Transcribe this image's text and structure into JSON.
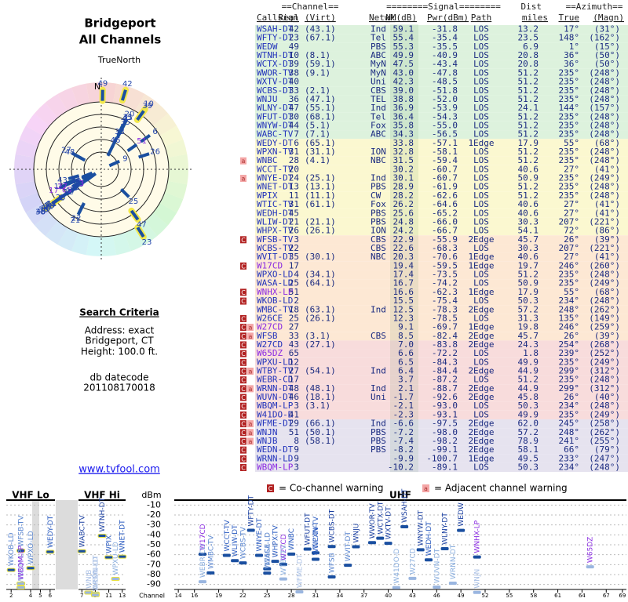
{
  "header": {
    "title": "Bridgeport",
    "subtitle": "All Channels"
  },
  "polar": {
    "north_label": "TrueNorth",
    "n": "N"
  },
  "search": {
    "heading": "Search Criteria",
    "lines": [
      "Address: exact",
      "Bridgeport, CT",
      "Height: 100.0 ft."
    ],
    "datecode_label": "db datecode",
    "datecode": "201108170018"
  },
  "link": "www.tvfool.com",
  "table": {
    "group_headers": [
      "==Channel==",
      "========Signal========",
      "Dist",
      "==Azimuth=="
    ],
    "headers": [
      "Callsign",
      "Real",
      "(Virt)",
      "Netwk",
      "NM(dB)",
      "Pwr(dBm)",
      "Path",
      "miles",
      "True",
      "(Magn)"
    ],
    "rows": [
      {
        "callsign": "WSAH-DT",
        "real": 42,
        "virt": "(43.1)",
        "netwk": "Ind",
        "nm": 59.1,
        "pwr": -31.8,
        "path": "LOS",
        "dist": 13.2,
        "az_true": "17°",
        "az_magn": "(31°)"
      },
      {
        "callsign": "WFTY-DT",
        "real": 23,
        "virt": "(67.1)",
        "netwk": "Tel",
        "nm": 55.4,
        "pwr": -35.4,
        "path": "LOS",
        "dist": 23.5,
        "az_true": "148°",
        "az_magn": "(162°)"
      },
      {
        "callsign": "WEDW",
        "real": 49,
        "netwk": "PBS",
        "nm": 55.3,
        "pwr": -35.5,
        "path": "LOS",
        "dist": 6.9,
        "az_true": "1°",
        "az_magn": "(15°)"
      },
      {
        "callsign": "WTNH-DT",
        "real": 10,
        "virt": "(8.1)",
        "netwk": "ABC",
        "nm": 49.9,
        "pwr": -40.9,
        "path": "LOS",
        "dist": 20.8,
        "az_true": "36°",
        "az_magn": "(50°)"
      },
      {
        "callsign": "WCTX-DT",
        "real": 39,
        "virt": "(59.1)",
        "netwk": "MyN",
        "nm": 47.5,
        "pwr": -43.4,
        "path": "LOS",
        "dist": 20.8,
        "az_true": "36°",
        "az_magn": "(50°)"
      },
      {
        "callsign": "WWOR-TV",
        "real": 38,
        "virt": "(9.1)",
        "netwk": "MyN",
        "nm": "43.0",
        "pwr": -47.8,
        "path": "LOS",
        "dist": 51.2,
        "az_true": "235°",
        "az_magn": "(248°)"
      },
      {
        "callsign": "WXTV-DT",
        "real": 40,
        "netwk": "Uni",
        "nm": 42.3,
        "pwr": -48.5,
        "path": "LOS",
        "dist": 51.2,
        "az_true": "235°",
        "az_magn": "(248°)"
      },
      {
        "callsign": "WCBS-DT",
        "real": 33,
        "virt": "(2.1)",
        "netwk": "CBS",
        "nm": "39.0",
        "pwr": -51.8,
        "path": "LOS",
        "dist": 51.2,
        "az_true": "235°",
        "az_magn": "(248°)"
      },
      {
        "callsign": "WNJU",
        "real": 36,
        "virt": "(47.1)",
        "netwk": "TEL",
        "nm": 38.8,
        "pwr": "-52.0",
        "path": "LOS",
        "dist": 51.2,
        "az_true": "235°",
        "az_magn": "(248°)"
      },
      {
        "callsign": "WLNY-DT",
        "real": 47,
        "virt": "(55.1)",
        "netwk": "Ind",
        "nm": 36.9,
        "pwr": -53.9,
        "path": "LOS",
        "dist": 24.1,
        "az_true": "144°",
        "az_magn": "(157°)"
      },
      {
        "callsign": "WFUT-DT",
        "real": 30,
        "virt": "(68.1)",
        "netwk": "Tel",
        "nm": 36.4,
        "pwr": -54.3,
        "path": "LOS",
        "dist": 51.2,
        "az_true": "235°",
        "az_magn": "(248°)"
      },
      {
        "callsign": "WNYW-DT",
        "real": 44,
        "virt": "(5.1)",
        "netwk": "Fox",
        "nm": 35.8,
        "pwr": "-55.0",
        "path": "LOS",
        "dist": 51.2,
        "az_true": "235°",
        "az_magn": "(248°)"
      },
      {
        "callsign": "WABC-TV",
        "real": 7,
        "virt": "(7.1)",
        "netwk": "ABC",
        "nm": 34.3,
        "pwr": -56.5,
        "path": "LOS",
        "dist": 51.2,
        "az_true": "235°",
        "az_magn": "(248°)"
      },
      {
        "callsign": "WEDY-DT",
        "real": 6,
        "virt": "(65.1)",
        "nm": 33.8,
        "pwr": -57.1,
        "path": "1Edge",
        "dist": 17.9,
        "az_true": "55°",
        "az_magn": "(68°)"
      },
      {
        "callsign": "WPXN-TV",
        "real": 31,
        "virt": "(31.1)",
        "netwk": "ION",
        "nm": 32.8,
        "pwr": -58.1,
        "path": "LOS",
        "dist": 51.2,
        "az_true": "235°",
        "az_magn": "(248°)"
      },
      {
        "callsign": "WNBC",
        "real": 28,
        "virt": "(4.1)",
        "netwk": "NBC",
        "nm": 31.5,
        "pwr": -59.4,
        "path": "LOS",
        "dist": 51.2,
        "az_true": "235°",
        "az_magn": "(248°)",
        "warn": [
          "a"
        ]
      },
      {
        "callsign": "WCCT-TV",
        "real": 20,
        "nm": 30.2,
        "pwr": -60.7,
        "path": "LOS",
        "dist": 40.6,
        "az_true": "27°",
        "az_magn": "(41°)"
      },
      {
        "callsign": "WNYE-DT",
        "real": 24,
        "virt": "(25.1)",
        "netwk": "Ind",
        "nm": 30.1,
        "pwr": -60.7,
        "path": "LOS",
        "dist": 50.9,
        "az_true": "235°",
        "az_magn": "(249°)",
        "warn": [
          "a"
        ]
      },
      {
        "callsign": "WNET-DT",
        "real": 13,
        "virt": "(13.1)",
        "netwk": "PBS",
        "nm": 28.9,
        "pwr": -61.9,
        "path": "LOS",
        "dist": 51.2,
        "az_true": "235°",
        "az_magn": "(248°)"
      },
      {
        "callsign": "WPIX",
        "real": 11,
        "virt": "(11.1)",
        "netwk": "CW",
        "nm": 28.2,
        "pwr": -62.6,
        "path": "LOS",
        "dist": 51.2,
        "az_true": "235°",
        "az_magn": "(248°)"
      },
      {
        "callsign": "WTIC-TV",
        "real": 31,
        "virt": "(61.1)",
        "netwk": "Fox",
        "nm": 26.2,
        "pwr": -64.6,
        "path": "LOS",
        "dist": 40.6,
        "az_true": "27°",
        "az_magn": "(41°)"
      },
      {
        "callsign": "WEDH-DT",
        "real": 45,
        "netwk": "PBS",
        "nm": 25.6,
        "pwr": -65.2,
        "path": "LOS",
        "dist": 40.6,
        "az_true": "27°",
        "az_magn": "(41°)"
      },
      {
        "callsign": "WLIW-DT",
        "real": 21,
        "virt": "(21.1)",
        "netwk": "PBS",
        "nm": 24.8,
        "pwr": "-66.0",
        "path": "LOS",
        "dist": 30.3,
        "az_true": "207°",
        "az_magn": "(221°)"
      },
      {
        "callsign": "WHPX-TV",
        "real": 26,
        "virt": "(26.1)",
        "netwk": "ION",
        "nm": 24.2,
        "pwr": -66.7,
        "path": "LOS",
        "dist": 54.1,
        "az_true": "72°",
        "az_magn": "(86°)"
      },
      {
        "callsign": "WFSB-TV",
        "real": 3,
        "netwk": "CBS",
        "nm": 22.9,
        "pwr": -55.9,
        "path": "2Edge",
        "dist": 45.7,
        "az_true": "26°",
        "az_magn": "(39°)",
        "warn": [
          "C"
        ]
      },
      {
        "callsign": "WCBS-TV",
        "real": 22,
        "netwk": "CBS",
        "nm": 22.6,
        "pwr": -68.3,
        "path": "LOS",
        "dist": 30.3,
        "az_true": "207°",
        "az_magn": "(221°)"
      },
      {
        "callsign": "WVIT-DT",
        "real": 35,
        "virt": "(30.1)",
        "netwk": "NBC",
        "nm": 20.3,
        "pwr": -70.6,
        "path": "1Edge",
        "dist": 40.6,
        "az_true": "27°",
        "az_magn": "(41°)"
      },
      {
        "callsign": "W17CD",
        "real": 17,
        "nm": 19.4,
        "pwr": -59.5,
        "path": "1Edge",
        "dist": 19.7,
        "az_true": "246°",
        "az_magn": "(260°)",
        "warn": [
          "C"
        ],
        "color": "#8a2be2"
      },
      {
        "callsign": "WPXO-LD",
        "real": 4,
        "virt": "(34.1)",
        "nm": 17.4,
        "pwr": -73.5,
        "path": "LOS",
        "dist": 51.2,
        "az_true": "235°",
        "az_magn": "(248°)"
      },
      {
        "callsign": "WASA-LD",
        "real": 25,
        "virt": "(64.1)",
        "nm": 16.7,
        "pwr": -74.2,
        "path": "LOS",
        "dist": 50.9,
        "az_true": "235°",
        "az_magn": "(249°)"
      },
      {
        "callsign": "WNHX-LP",
        "real": 51,
        "nm": 16.6,
        "pwr": -62.3,
        "path": "1Edge",
        "dist": 17.9,
        "az_true": "55°",
        "az_magn": "(68°)",
        "warn": [
          "C"
        ],
        "color": "#8a2be2"
      },
      {
        "callsign": "WKOB-LD",
        "real": 2,
        "nm": 15.5,
        "pwr": -75.4,
        "path": "LOS",
        "dist": 50.3,
        "az_true": "234°",
        "az_magn": "(248°)",
        "warn": [
          "C"
        ]
      },
      {
        "callsign": "WMBC-TV",
        "real": 18,
        "virt": "(63.1)",
        "netwk": "Ind",
        "nm": 12.5,
        "pwr": -78.3,
        "path": "2Edge",
        "dist": 57.2,
        "az_true": "248°",
        "az_magn": "(262°)"
      },
      {
        "callsign": "W26CE",
        "real": 25,
        "virt": "(26.1)",
        "nm": 12.3,
        "pwr": -78.5,
        "path": "LOS",
        "dist": 31.3,
        "az_true": "135°",
        "az_magn": "(149°)",
        "warn": [
          "C"
        ]
      },
      {
        "callsign": "W27CD",
        "real": 27,
        "nm": 9.1,
        "pwr": -69.7,
        "path": "1Edge",
        "dist": 19.8,
        "az_true": "246°",
        "az_magn": "(259°)",
        "warn": [
          "C",
          "a"
        ],
        "color": "#8a2be2"
      },
      {
        "callsign": "WFSB",
        "real": 33,
        "virt": "(3.1)",
        "netwk": "CBS",
        "nm": 8.5,
        "pwr": -82.4,
        "path": "2Edge",
        "dist": 45.7,
        "az_true": "26°",
        "az_magn": "(39°)",
        "warn": [
          "C",
          "a"
        ]
      },
      {
        "callsign": "W27CD",
        "real": 43,
        "virt": "(27.1)",
        "nm": "7.0",
        "pwr": -83.8,
        "path": "2Edge",
        "dist": 24.3,
        "az_true": "254°",
        "az_magn": "(268°)",
        "warn": [
          "C"
        ]
      },
      {
        "callsign": "W65DZ",
        "real": 65,
        "nm": 6.6,
        "pwr": -72.2,
        "path": "LOS",
        "dist": 1.8,
        "az_true": "239°",
        "az_magn": "(252°)",
        "warn": [
          "C"
        ],
        "color": "#8a2be2"
      },
      {
        "callsign": "WPXU-LD",
        "real": 12,
        "nm": 6.5,
        "pwr": -84.3,
        "path": "LOS",
        "dist": 49.9,
        "az_true": "235°",
        "az_magn": "(249°)",
        "warn": [
          "C"
        ]
      },
      {
        "callsign": "WTBY-TV",
        "real": 27,
        "virt": "(54.1)",
        "netwk": "Ind",
        "nm": 6.4,
        "pwr": -84.4,
        "path": "2Edge",
        "dist": 44.9,
        "az_true": "299°",
        "az_magn": "(312°)",
        "warn": [
          "C",
          "a"
        ]
      },
      {
        "callsign": "WEBR-CD",
        "real": 17,
        "nm": 3.7,
        "pwr": -87.2,
        "path": "LOS",
        "dist": 51.2,
        "az_true": "235°",
        "az_magn": "(248°)",
        "warn": [
          "C"
        ]
      },
      {
        "callsign": "WRNN-DT",
        "real": 48,
        "virt": "(48.1)",
        "netwk": "Ind",
        "nm": 2.1,
        "pwr": -88.7,
        "path": "2Edge",
        "dist": 44.9,
        "az_true": "299°",
        "az_magn": "(312°)",
        "warn": [
          "C",
          "a"
        ]
      },
      {
        "callsign": "WUVN-DT",
        "real": 46,
        "virt": "(18.1)",
        "netwk": "Uni",
        "nm": -1.7,
        "pwr": -92.6,
        "path": "2Edge",
        "dist": 45.8,
        "az_true": "26°",
        "az_magn": "(40°)",
        "warn": [
          "C"
        ]
      },
      {
        "callsign": "WBQM-LP",
        "real": 3,
        "virt": "(3.1)",
        "nm": -2.1,
        "pwr": "-93.0",
        "path": "LOS",
        "dist": 50.3,
        "az_true": "234°",
        "az_magn": "(248°)",
        "warn": [
          "C"
        ]
      },
      {
        "callsign": "W41DO-D",
        "real": 41,
        "nm": -2.3,
        "pwr": -93.1,
        "path": "LOS",
        "dist": 49.9,
        "az_true": "235°",
        "az_magn": "(249°)",
        "warn": [
          "C"
        ]
      },
      {
        "callsign": "WFME-DT",
        "real": 29,
        "virt": "(66.1)",
        "netwk": "Ind",
        "nm": -6.6,
        "pwr": -97.5,
        "path": "2Edge",
        "dist": "62.0",
        "az_true": "245°",
        "az_magn": "(258°)",
        "warn": [
          "C",
          "a"
        ]
      },
      {
        "callsign": "WNJN",
        "real": 51,
        "virt": "(50.1)",
        "netwk": "PBS",
        "nm": -7.2,
        "pwr": "-98.0",
        "path": "2Edge",
        "dist": 57.2,
        "az_true": "248°",
        "az_magn": "(262°)",
        "warn": [
          "C",
          "a"
        ]
      },
      {
        "callsign": "WNJB",
        "real": 8,
        "virt": "(58.1)",
        "netwk": "PBS",
        "nm": -7.4,
        "pwr": -98.2,
        "path": "2Edge",
        "dist": 78.9,
        "az_true": "241°",
        "az_magn": "(255°)",
        "warn": [
          "C",
          "a"
        ]
      },
      {
        "callsign": "WEDN-DT",
        "real": 9,
        "netwk": "PBS",
        "nm": -8.2,
        "pwr": -99.1,
        "path": "2Edge",
        "dist": 58.1,
        "az_true": "66°",
        "az_magn": "(79°)",
        "warn": [
          "C"
        ]
      },
      {
        "callsign": "WRNN-LD",
        "real": 9,
        "nm": -9.9,
        "pwr": -100.7,
        "path": "1Edge",
        "dist": 49.5,
        "az_true": "233°",
        "az_magn": "(247°)",
        "warn": [
          "C"
        ]
      },
      {
        "callsign": "WBQM-LP",
        "real": 3,
        "nm": -10.2,
        "pwr": -89.1,
        "path": "LOS",
        "dist": 50.3,
        "az_true": "234°",
        "az_magn": "(248°)",
        "warn": [
          "C"
        ],
        "color": "#8a2be2"
      }
    ]
  },
  "chart_data": {
    "type": "scatter",
    "ylabel": "dBm",
    "xlabel": "Channel",
    "ylim": [
      -5,
      -95
    ],
    "yticks": [
      -10,
      -20,
      -30,
      -40,
      -50,
      -60,
      -70,
      -80,
      -90
    ],
    "legend": [
      {
        "marker": "C",
        "text": "= Co-channel warning",
        "color": "#b22222"
      },
      {
        "marker": "a",
        "text": "= Adjacent channel warning",
        "color": "#f4a6a6"
      }
    ],
    "panels": [
      {
        "title": "VHF Lo",
        "xlim": [
          1.5,
          6.5
        ],
        "xticks": [
          2,
          4,
          5,
          6
        ]
      },
      {
        "title": "VHF Hi",
        "xlim": [
          6.5,
          13.5
        ],
        "xticks": [
          7,
          9,
          11,
          13
        ]
      },
      {
        "title": "UHF",
        "xlim": [
          13.5,
          69.5
        ],
        "xticks": [
          14,
          16,
          19,
          22,
          25,
          28,
          31,
          34,
          37,
          40,
          43,
          46,
          49,
          52,
          55,
          58,
          61,
          64,
          67,
          69
        ]
      }
    ],
    "grid": true
  }
}
